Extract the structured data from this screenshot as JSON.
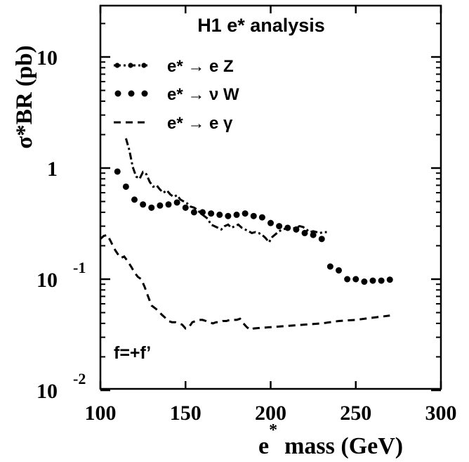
{
  "chart_data": {
    "type": "line",
    "title": "H1 e* analysis",
    "xlabel_base": "e",
    "xlabel_sup": "*",
    "xlabel_rest": "mass (GeV)",
    "ylabel": "σ*BR (pb)",
    "xlim": [
      100,
      300
    ],
    "ylim": [
      0.01,
      30
    ],
    "yscale": "log",
    "x_ticks": [
      100,
      150,
      200,
      250,
      300
    ],
    "x_tick_labels": [
      "100",
      "150",
      "200",
      "250",
      "300"
    ],
    "y_ticks": [
      {
        "value": 0.01,
        "base": "10",
        "exp": "-2"
      },
      {
        "value": 0.1,
        "base": "10",
        "exp": "-1"
      },
      {
        "value": 1,
        "base": "1",
        "exp": ""
      },
      {
        "value": 10,
        "base": "10",
        "exp": ""
      }
    ],
    "annotation": "f=+f’",
    "grid": false,
    "legend_position": "top-left",
    "series": [
      {
        "name": "e* → e Z",
        "style": "dash-dot-marker",
        "x": [
          115,
          117,
          119,
          121,
          123,
          125,
          127,
          129,
          131,
          133,
          135,
          137,
          139,
          141,
          143,
          145,
          147,
          149,
          151,
          153,
          155,
          157,
          159,
          161,
          163,
          165,
          167,
          169,
          171,
          173,
          175,
          177,
          179,
          181,
          183,
          185,
          187,
          189,
          191,
          193,
          195,
          197,
          199,
          201,
          203,
          205,
          207,
          209,
          211,
          213,
          215,
          217,
          219,
          221,
          223,
          225,
          227,
          229,
          231,
          233
        ],
        "values": [
          1.85,
          1.45,
          1.02,
          0.84,
          0.8,
          0.92,
          0.88,
          0.75,
          0.68,
          0.7,
          0.64,
          0.6,
          0.63,
          0.58,
          0.55,
          0.57,
          0.52,
          0.5,
          0.48,
          0.45,
          0.44,
          0.42,
          0.39,
          0.37,
          0.35,
          0.31,
          0.3,
          0.29,
          0.28,
          0.3,
          0.31,
          0.29,
          0.3,
          0.31,
          0.29,
          0.28,
          0.27,
          0.26,
          0.265,
          0.26,
          0.25,
          0.235,
          0.215,
          0.24,
          0.255,
          0.27,
          0.28,
          0.285,
          0.29,
          0.285,
          0.29,
          0.3,
          0.295,
          0.28,
          0.265,
          0.27,
          0.265,
          0.26,
          0.265,
          0.265
        ]
      },
      {
        "name": "e* → ν W",
        "style": "dots",
        "x": [
          110,
          115,
          120,
          125,
          130,
          135,
          140,
          145,
          150,
          155,
          160,
          165,
          170,
          175,
          180,
          185,
          190,
          195,
          200,
          205,
          210,
          215,
          220,
          225,
          230,
          235,
          240,
          245,
          250,
          255,
          260,
          265,
          270
        ],
        "values": [
          0.93,
          0.68,
          0.52,
          0.47,
          0.44,
          0.46,
          0.47,
          0.49,
          0.44,
          0.4,
          0.4,
          0.39,
          0.38,
          0.37,
          0.38,
          0.39,
          0.37,
          0.36,
          0.32,
          0.3,
          0.29,
          0.28,
          0.26,
          0.25,
          0.23,
          0.13,
          0.12,
          0.1,
          0.1,
          0.095,
          0.097,
          0.097,
          0.099
        ]
      },
      {
        "name": "e* → e γ",
        "style": "dashed",
        "x": [
          100,
          102,
          104,
          106,
          108,
          110,
          112,
          114,
          116,
          118,
          120,
          122,
          124,
          126,
          128,
          130,
          132,
          134,
          136,
          138,
          140,
          142,
          144,
          146,
          148,
          150,
          152,
          154,
          156,
          158,
          160,
          162,
          164,
          166,
          168,
          170,
          172,
          174,
          176,
          178,
          180,
          182,
          184,
          186,
          188,
          190,
          200,
          210,
          220,
          230,
          240,
          250,
          260,
          270
        ],
        "values": [
          0.23,
          0.245,
          0.25,
          0.22,
          0.19,
          0.17,
          0.155,
          0.16,
          0.145,
          0.13,
          0.115,
          0.105,
          0.1,
          0.085,
          0.07,
          0.058,
          0.055,
          0.052,
          0.048,
          0.045,
          0.042,
          0.041,
          0.041,
          0.04,
          0.039,
          0.036,
          0.037,
          0.041,
          0.042,
          0.043,
          0.043,
          0.042,
          0.041,
          0.04,
          0.041,
          0.041,
          0.042,
          0.042,
          0.043,
          0.043,
          0.043,
          0.044,
          0.04,
          0.037,
          0.035,
          0.036,
          0.037,
          0.038,
          0.039,
          0.04,
          0.042,
          0.043,
          0.045,
          0.047
        ]
      }
    ]
  }
}
